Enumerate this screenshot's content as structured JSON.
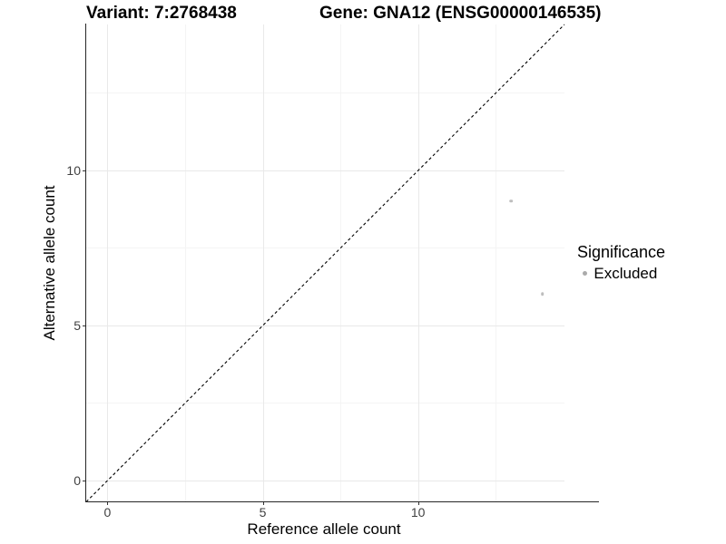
{
  "titles": {
    "left": "Variant: 7:2768438",
    "right": "Gene: GNA12 (ENSG00000146535)"
  },
  "chart_data": {
    "type": "scatter",
    "title": "Variant: 7:2768438   Gene: GNA12 (ENSG00000146535)",
    "xlabel": "Reference allele count",
    "ylabel": "Alternative allele count",
    "xlim": [
      -0.7,
      14.7
    ],
    "ylim": [
      -0.7,
      14.7
    ],
    "x_ticks": [
      0,
      5,
      10
    ],
    "y_ticks": [
      0,
      5,
      10
    ],
    "x_minor_ticks": [
      2.5,
      7.5,
      12.5
    ],
    "y_minor_ticks": [
      2.5,
      7.5,
      12.5
    ],
    "grid": true,
    "identity_line": {
      "x1": -0.7,
      "y1": -0.7,
      "x2": 14.7,
      "y2": 14.7,
      "style": "dashed",
      "color": "#000000"
    },
    "series": [
      {
        "name": "Excluded",
        "color": "#bebebe",
        "points": [
          {
            "x": 13,
            "y": 9
          },
          {
            "x": 14,
            "y": 6
          }
        ]
      }
    ],
    "legend": {
      "title": "Significance",
      "position": "right",
      "items": [
        {
          "label": "Excluded",
          "color": "#ababab"
        }
      ]
    }
  },
  "colors": {
    "grid_major": "#e9e9e9",
    "grid_minor": "#f4f4f4",
    "axis_line": "#262626",
    "tick_mark": "#333333"
  }
}
